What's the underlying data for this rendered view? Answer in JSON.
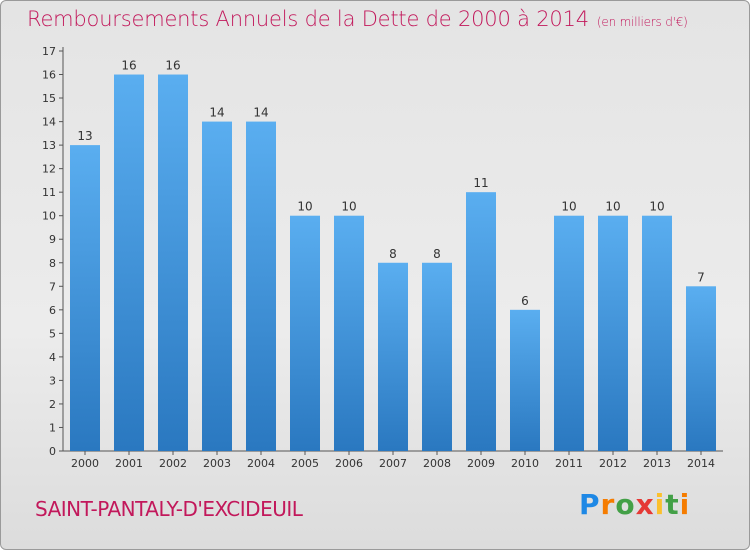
{
  "header": {
    "title": "Remboursements Annuels de la Dette de 2000 à 2014",
    "unit": "(en milliers d'€)"
  },
  "footer": {
    "commune": "SAINT-PANTALY-D'EXCIDEUIL",
    "logo": "Proxiti"
  },
  "colors": {
    "title": "#c2185b",
    "bar_top": "#5aaef0",
    "bar_bottom": "#2a78c0",
    "text": "#333333"
  },
  "chart_data": {
    "type": "bar",
    "title": "Remboursements Annuels de la Dette de 2000 à 2014",
    "xlabel": "",
    "ylabel": "(en milliers d'€)",
    "categories": [
      "2000",
      "2001",
      "2002",
      "2003",
      "2004",
      "2005",
      "2006",
      "2007",
      "2008",
      "2009",
      "2010",
      "2011",
      "2012",
      "2013",
      "2014"
    ],
    "values": [
      13,
      16,
      16,
      14,
      14,
      10,
      10,
      8,
      8,
      11,
      6,
      10,
      10,
      10,
      7
    ],
    "ylim": [
      0,
      17
    ],
    "yticks": [
      0,
      1,
      2,
      3,
      4,
      5,
      6,
      7,
      8,
      9,
      10,
      11,
      12,
      13,
      14,
      15,
      16,
      17
    ],
    "grid": false,
    "legend": "none"
  }
}
